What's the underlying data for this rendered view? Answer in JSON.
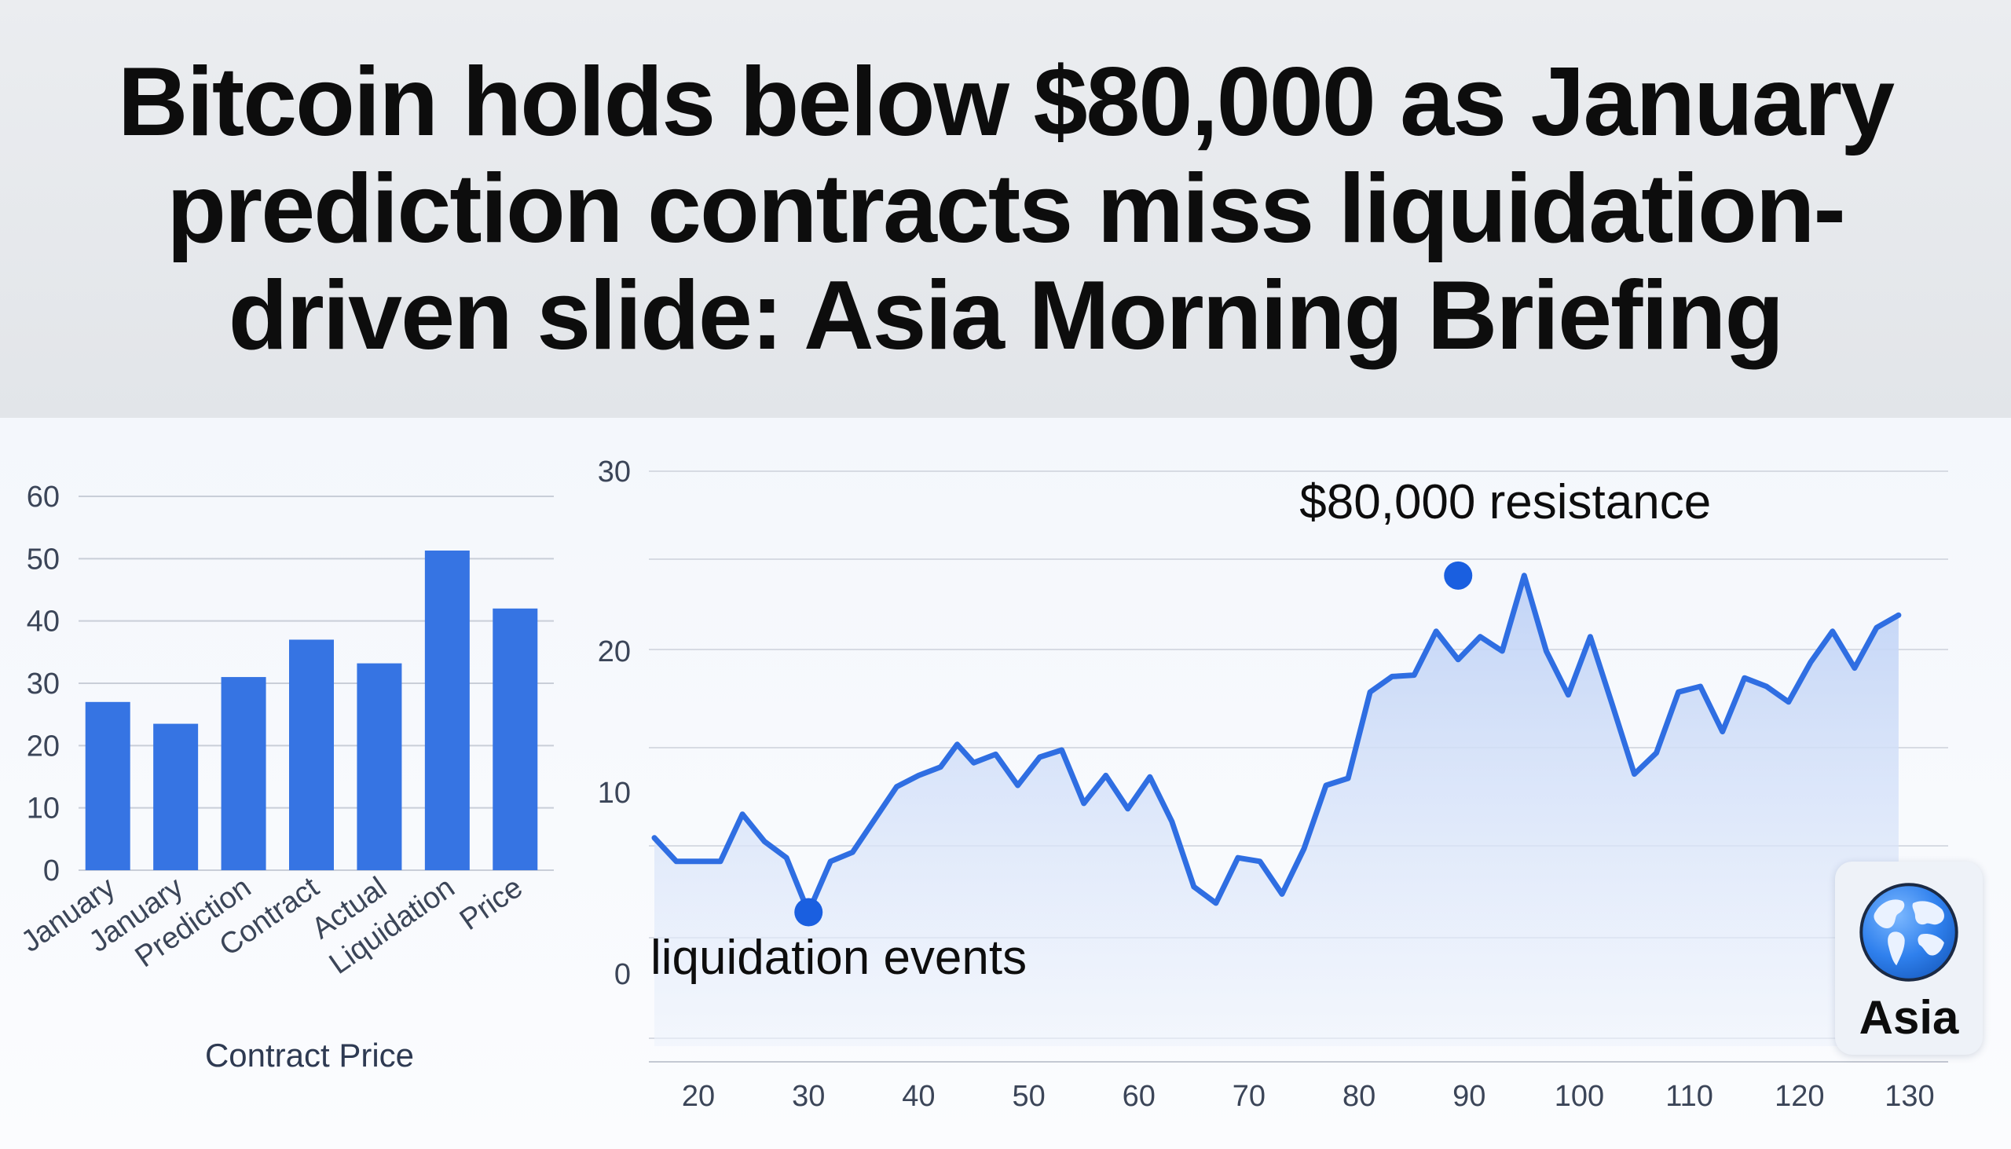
{
  "headline": "Bitcoin holds below $80,000 as January prediction contracts miss liquidation-driven slide: Asia Morning Briefing",
  "badge": {
    "label": "Asia",
    "icon": "globe-icon"
  },
  "colors": {
    "bar": "#3674e3",
    "line": "#2f6ee2",
    "area": "#cfdcf7",
    "marker": "#1a5fe0"
  },
  "chart_data": [
    {
      "type": "bar",
      "categories": [
        "January",
        "January",
        "Prediction",
        "Contract",
        "Actual",
        "Liquidation",
        "Price"
      ],
      "values": [
        27,
        23.5,
        31,
        37,
        33.2,
        51.3,
        42
      ],
      "xlabel": "Contract Price",
      "ylabel": "",
      "ylim": [
        0,
        60
      ],
      "yticks": [
        0,
        10,
        20,
        30,
        40,
        50,
        60
      ],
      "grid": true
    },
    {
      "type": "area",
      "x": [
        16,
        18,
        20,
        22,
        24,
        26,
        28,
        30,
        32,
        34,
        36,
        38,
        40,
        42,
        43.5,
        45,
        47,
        49,
        51,
        53,
        55,
        57,
        59,
        61,
        63,
        65,
        67,
        69,
        71,
        73,
        75,
        77,
        79,
        81,
        83,
        85,
        87,
        89,
        91,
        93,
        95,
        97,
        99,
        101,
        103,
        105,
        107,
        109,
        111,
        113,
        115,
        117,
        119,
        121,
        123,
        125,
        127,
        129
      ],
      "y": [
        7.5,
        6.2,
        6.2,
        6.2,
        8.8,
        7.3,
        6.4,
        3.4,
        6.2,
        6.7,
        8.5,
        10.4,
        11.2,
        11.8,
        13.4,
        12.1,
        12.7,
        10.5,
        12.5,
        13.0,
        9.4,
        11.2,
        9.1,
        11.1,
        8.4,
        4.8,
        3.9,
        6.4,
        6.2,
        4.4,
        6.9,
        10.5,
        11.0,
        17.1,
        18.2,
        18.3,
        21.1,
        19.4,
        20.8,
        20.0,
        24.2,
        20.0,
        16.9,
        20.8,
        16.2,
        11.3,
        12.8,
        17.1,
        17.5,
        14.3,
        18.1,
        17.5,
        16.4,
        19.2,
        21.1,
        18.8,
        21.3,
        22.0
      ],
      "xticks": [
        20,
        30,
        40,
        50,
        60,
        70,
        80,
        90,
        100,
        110,
        120,
        130
      ],
      "yticks": [
        0,
        10,
        20,
        30
      ],
      "annotations": [
        {
          "text": "$80,000 resistance",
          "x": 89,
          "y": 24.2
        },
        {
          "text": "liquidation events",
          "x": 30,
          "y": 3.4
        }
      ],
      "grid": true
    }
  ]
}
